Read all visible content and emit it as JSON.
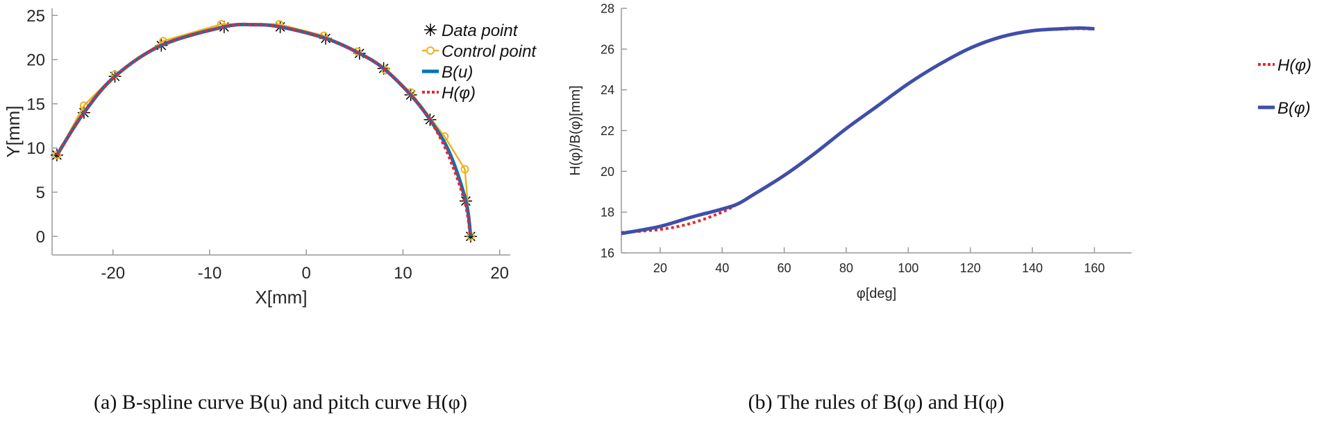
{
  "chart_data": [
    {
      "type": "line",
      "caption": "(a) B-spline curve B(u) and pitch curve H(φ)",
      "xlabel": "X[mm]",
      "ylabel": "Y[mm]",
      "xlim": [
        -26.3,
        21.1
      ],
      "ylim": [
        -2.1,
        25.8
      ],
      "xticks": [
        -20,
        -10,
        0,
        10,
        20
      ],
      "yticks": [
        0,
        5,
        10,
        15,
        20,
        25
      ],
      "grid": false,
      "legend_position": "top-right",
      "series": [
        {
          "name": "Data point",
          "style": "marker-asterisk",
          "color": "#000000",
          "x": [
            -25.8,
            -23,
            -19.8,
            -15,
            -8.5,
            -2.7,
            2,
            5.5,
            8,
            10.8,
            12.8,
            16.5,
            17
          ],
          "y": [
            9.2,
            14,
            18.1,
            21.6,
            23.7,
            23.7,
            22.4,
            20.7,
            19,
            16,
            13.2,
            4,
            0
          ]
        },
        {
          "name": "Control point",
          "style": "line-circle",
          "color": "#EDB120",
          "x": [
            -25.8,
            -23,
            -19.8,
            -14.8,
            -8.8,
            -2.8,
            1.8,
            5.3,
            8.2,
            10.8,
            14.3,
            16.4,
            17
          ],
          "y": [
            9.2,
            14.8,
            18.3,
            22.1,
            24,
            24,
            22.7,
            20.9,
            18.8,
            16.3,
            11.3,
            7.6,
            0
          ]
        },
        {
          "name": "B(u)",
          "style": "solid",
          "color": "#0072BD",
          "x": [
            -25.8,
            -23,
            -19.8,
            -15,
            -8.5,
            -5.5,
            -2.7,
            2,
            5.5,
            8,
            10.8,
            12.8,
            14.8,
            16.5,
            17
          ],
          "y": [
            9.2,
            14,
            18.1,
            21.6,
            23.7,
            23.95,
            23.7,
            22.4,
            20.7,
            19,
            16,
            13.2,
            9.5,
            4,
            0
          ]
        },
        {
          "name": "H(φ)",
          "style": "dotted",
          "color": "#E8262B",
          "x": [
            -25.8,
            -23,
            -19.8,
            -15,
            -8.5,
            -5.5,
            -2.7,
            2,
            5.5,
            8,
            10.8,
            12.8,
            14.6,
            16.4,
            17
          ],
          "y": [
            9.2,
            14,
            18.1,
            21.6,
            23.7,
            23.95,
            23.7,
            22.4,
            20.7,
            19,
            16,
            13.2,
            9.5,
            4,
            0
          ]
        }
      ]
    },
    {
      "type": "line",
      "caption": "(b) The rules of B(φ) and H(φ)",
      "xlabel": "φ[deg]",
      "ylabel": "H(φ)/B(φ)[mm]",
      "xlim": [
        7.5,
        172
      ],
      "ylim": [
        16,
        28
      ],
      "xticks": [
        20,
        40,
        60,
        80,
        100,
        120,
        140,
        160
      ],
      "yticks": [
        16,
        18,
        20,
        22,
        24,
        26,
        28
      ],
      "grid": false,
      "legend_position": "right",
      "series": [
        {
          "name": "H(φ)",
          "style": "dotted",
          "color": "#E8262B",
          "x": [
            7.5,
            20,
            30,
            40,
            45,
            50,
            60,
            70,
            80,
            90,
            100,
            110,
            120,
            130,
            140,
            150,
            155,
            160
          ],
          "y": [
            17.0,
            17.15,
            17.45,
            18.0,
            18.4,
            18.85,
            19.8,
            20.9,
            22.1,
            23.2,
            24.3,
            25.25,
            26.05,
            26.6,
            26.9,
            26.98,
            27.0,
            26.98
          ]
        },
        {
          "name": "B(φ)",
          "style": "solid",
          "color": "#3F4FA8",
          "x": [
            7.5,
            20,
            30,
            40,
            45,
            50,
            60,
            70,
            80,
            90,
            100,
            110,
            120,
            130,
            140,
            150,
            155,
            160
          ],
          "y": [
            16.95,
            17.3,
            17.75,
            18.15,
            18.4,
            18.85,
            19.8,
            20.9,
            22.1,
            23.2,
            24.3,
            25.25,
            26.05,
            26.6,
            26.9,
            27.0,
            27.03,
            27.0
          ]
        }
      ]
    }
  ]
}
